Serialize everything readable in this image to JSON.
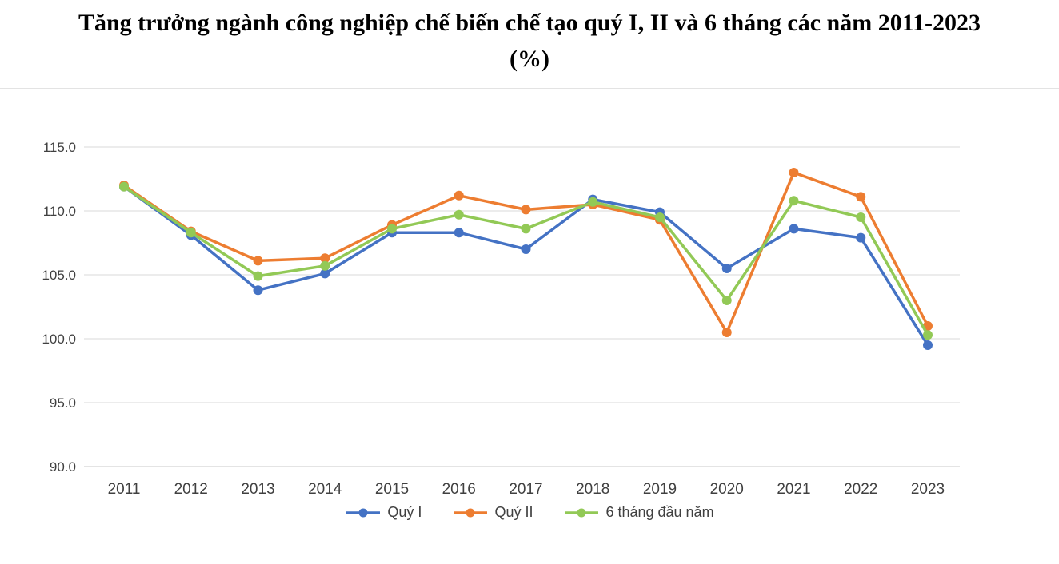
{
  "title": "Tăng trưởng ngành công nghiệp chế biến chế tạo quý I, II và 6 tháng các năm 2011-2023 (%)",
  "chart_data": {
    "type": "line",
    "title": "Tăng trưởng ngành công nghiệp chế biến chế tạo quý I, II và 6 tháng các năm 2011-2023 (%)",
    "categories": [
      "2011",
      "2012",
      "2013",
      "2014",
      "2015",
      "2016",
      "2017",
      "2018",
      "2019",
      "2020",
      "2021",
      "2022",
      "2023"
    ],
    "series": [
      {
        "name": "Quý I",
        "color": "#4472C4",
        "values": [
          111.9,
          108.1,
          103.8,
          105.1,
          108.3,
          108.3,
          107.0,
          110.9,
          109.9,
          105.5,
          108.6,
          107.9,
          99.5
        ]
      },
      {
        "name": "Quý II",
        "color": "#ED7D31",
        "values": [
          112.0,
          108.4,
          106.1,
          106.3,
          108.9,
          111.2,
          110.1,
          110.5,
          109.3,
          100.5,
          113.0,
          111.1,
          101.0
        ]
      },
      {
        "name": "6 tháng đầu năm",
        "color": "#92C956",
        "values": [
          111.9,
          108.3,
          104.9,
          105.7,
          108.6,
          109.7,
          108.6,
          110.7,
          109.5,
          103.0,
          110.8,
          109.5,
          100.3
        ]
      }
    ],
    "ylim": [
      90,
      115
    ],
    "ytick_step": 5,
    "ytick_labels": [
      "90.0",
      "95.0",
      "100.0",
      "105.0",
      "110.0",
      "115.0"
    ],
    "grid": "horizontal",
    "legend_position": "bottom",
    "colors": {
      "gridline": "#D9D9D9",
      "axis_line": "#C9C9C9",
      "tick_text": "#404040"
    }
  }
}
